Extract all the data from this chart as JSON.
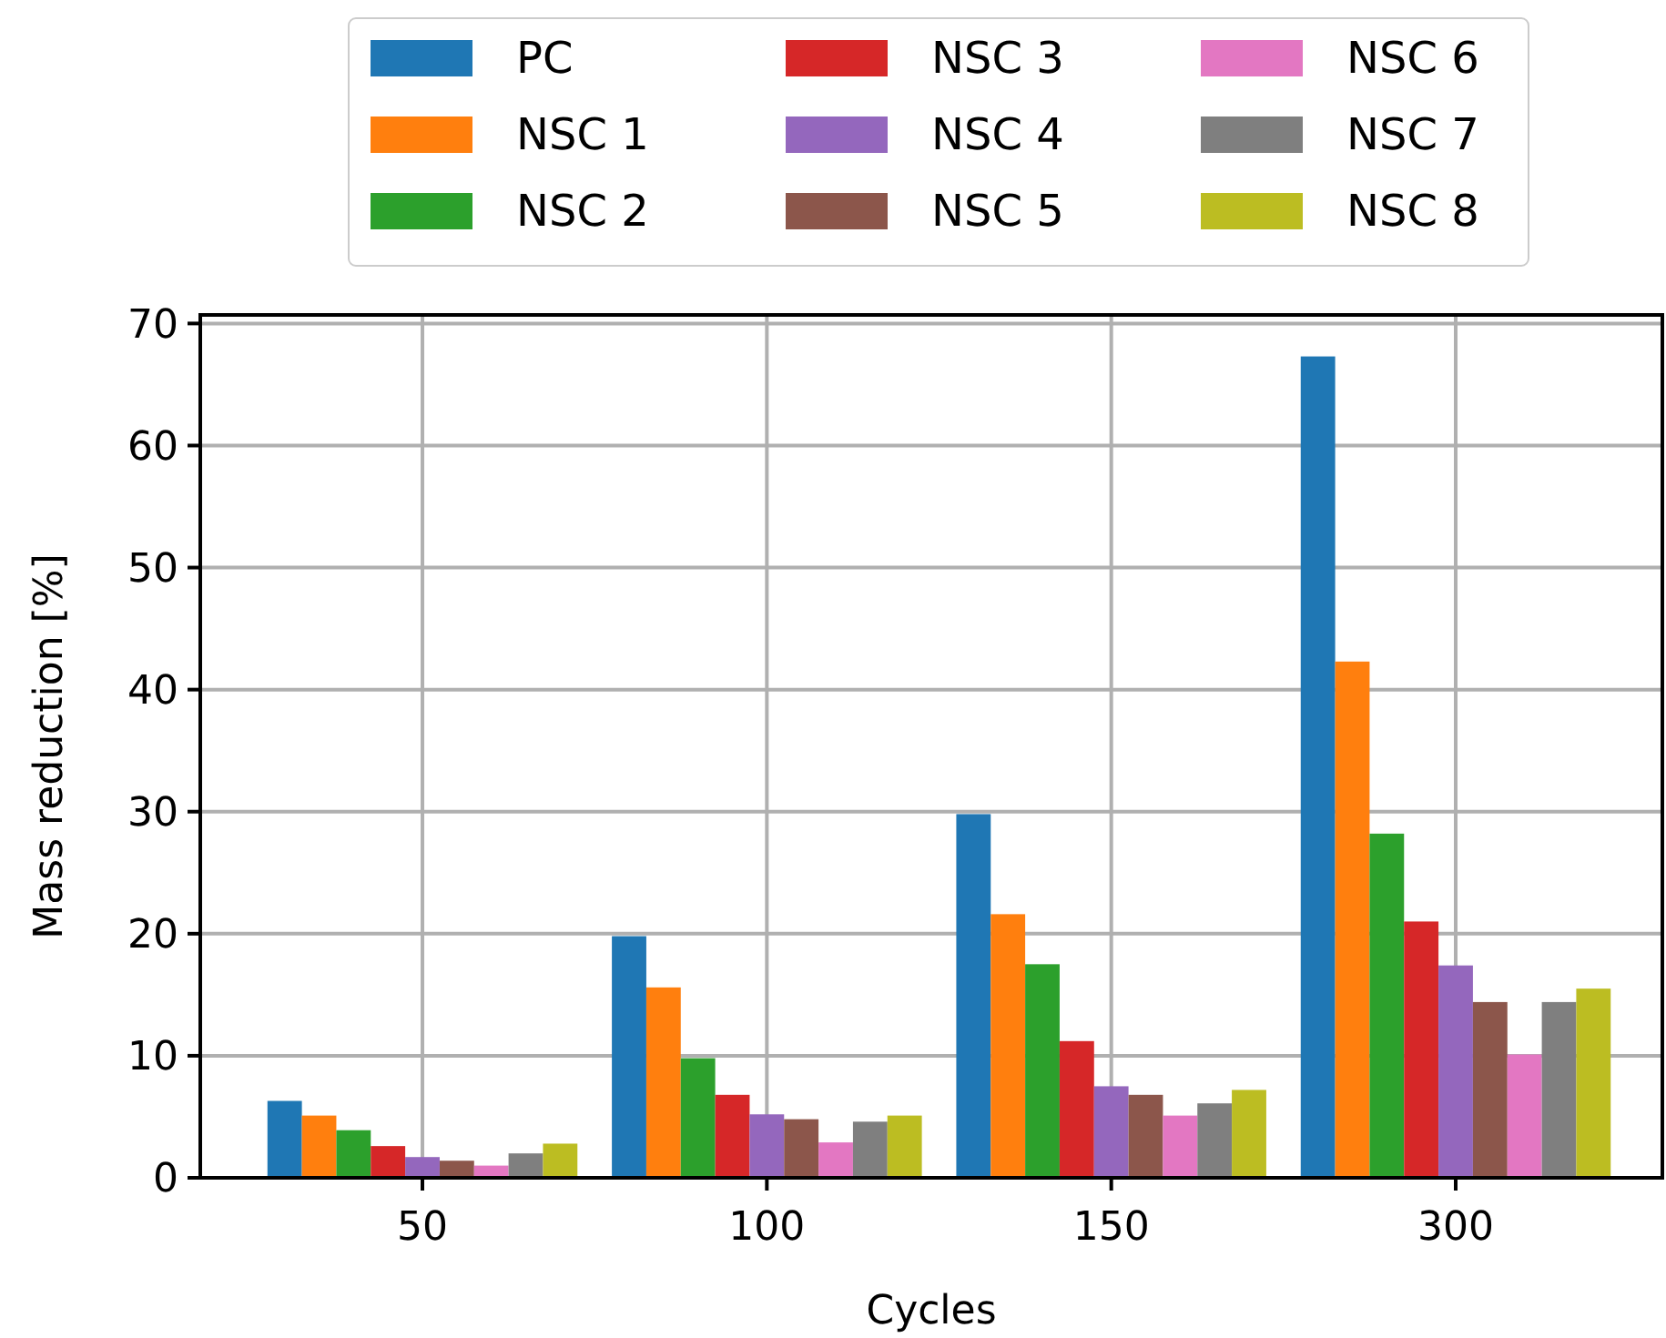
{
  "chart_data": {
    "type": "bar",
    "xlabel": "Cycles",
    "ylabel": "Mass reduction [%]",
    "categories": [
      "50",
      "100",
      "150",
      "300"
    ],
    "series": [
      {
        "name": "PC",
        "color": "#1f77b4",
        "values": [
          6.3,
          19.8,
          29.8,
          67.3
        ]
      },
      {
        "name": "NSC 1",
        "color": "#ff7f0e",
        "values": [
          5.1,
          15.6,
          21.6,
          42.3
        ]
      },
      {
        "name": "NSC 2",
        "color": "#2ca02c",
        "values": [
          3.9,
          9.8,
          17.5,
          28.2
        ]
      },
      {
        "name": "NSC 3",
        "color": "#d62728",
        "values": [
          2.6,
          6.8,
          11.2,
          21.0
        ]
      },
      {
        "name": "NSC 4",
        "color": "#9467bd",
        "values": [
          1.7,
          5.2,
          7.5,
          17.4
        ]
      },
      {
        "name": "NSC 5",
        "color": "#8c564b",
        "values": [
          1.4,
          4.8,
          6.8,
          14.4
        ]
      },
      {
        "name": "NSC 6",
        "color": "#e377c2",
        "values": [
          1.0,
          2.9,
          5.1,
          10.1
        ]
      },
      {
        "name": "NSC 7",
        "color": "#7f7f7f",
        "values": [
          2.0,
          4.6,
          6.1,
          14.4
        ]
      },
      {
        "name": "NSC 8",
        "color": "#bcbd22",
        "values": [
          2.8,
          5.1,
          7.2,
          15.5
        ]
      }
    ],
    "ylim": [
      0,
      70.7
    ],
    "yticks": [
      0,
      10,
      20,
      30,
      40,
      50,
      60,
      70
    ],
    "grid": true,
    "legend": "top"
  }
}
